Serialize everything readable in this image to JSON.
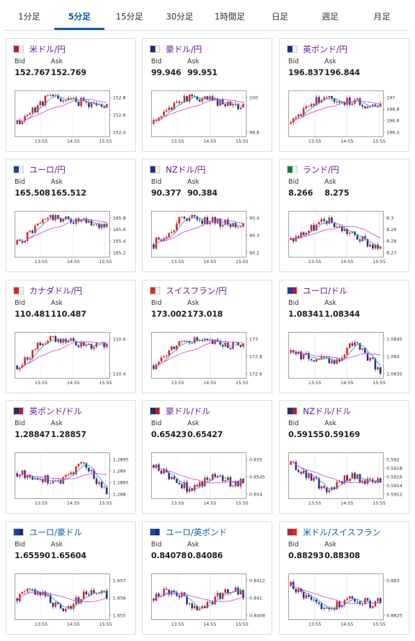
{
  "tabs": [
    {
      "label": "1分足",
      "active": false
    },
    {
      "label": "5分足",
      "active": true
    },
    {
      "label": "15分足",
      "active": false
    },
    {
      "label": "30分足",
      "active": false
    },
    {
      "label": "1時間足",
      "active": false
    },
    {
      "label": "日足",
      "active": false
    },
    {
      "label": "週足",
      "active": false
    },
    {
      "label": "月足",
      "active": false
    }
  ],
  "quote_labels": {
    "bid": "Bid",
    "ask": "Ask"
  },
  "colors": {
    "up": "#e02020",
    "down": "#1f2d8c",
    "ma_short": "#25a3c4",
    "ma_long": "#d64bd6",
    "pair_purple": "#6a1b9a",
    "pair_blue": "#0b5aa5",
    "tab_active": "#0b5aa5"
  },
  "cards": [
    {
      "pair": "米ドル/円",
      "flag": [
        "us",
        "jp"
      ],
      "bid": "152.767",
      "ask": "152.769",
      "seed": 11,
      "shape": "upflat",
      "chart_data": {
        "type": "candlestick",
        "xticks": [
          "13:55",
          "14:55",
          "15:55"
        ],
        "yticks": [
          "152.8",
          "152.6",
          "152.4"
        ]
      }
    },
    {
      "pair": "豪ドル/円",
      "flag": [
        "au",
        "jp"
      ],
      "bid": "99.946",
      "ask": "99.951",
      "seed": 23,
      "shape": "upflat",
      "chart_data": {
        "type": "candlestick",
        "xticks": [
          "13:55",
          "14:55",
          "15:55"
        ],
        "yticks": [
          "100",
          "99.8"
        ]
      }
    },
    {
      "pair": "英ポンド/円",
      "flag": [
        "gb",
        "jp"
      ],
      "bid": "196.837",
      "ask": "196.844",
      "seed": 37,
      "shape": "upflat",
      "chart_data": {
        "type": "candlestick",
        "xticks": [
          "13:55",
          "14:55",
          "15:55"
        ],
        "yticks": [
          "197",
          "196.8",
          "196.6",
          "196.4"
        ]
      }
    },
    {
      "pair": "ユーロ/円",
      "flag": [
        "eu",
        "jp"
      ],
      "bid": "165.508",
      "ask": "165.512",
      "seed": 41,
      "shape": "upflat",
      "chart_data": {
        "type": "candlestick",
        "xticks": [
          "13:55",
          "14:55",
          "15:55"
        ],
        "yticks": [
          "165.8",
          "165.6",
          "165.4",
          "165.2"
        ]
      }
    },
    {
      "pair": "NZドル/円",
      "flag": [
        "nz",
        "jp"
      ],
      "bid": "90.377",
      "ask": "90.384",
      "seed": 53,
      "shape": "upflat",
      "chart_data": {
        "type": "candlestick",
        "xticks": [
          "13:55",
          "14:55",
          "15:55"
        ],
        "yticks": [
          "90.4",
          "90.3",
          "90.2"
        ]
      }
    },
    {
      "pair": "ランド/円",
      "flag": [
        "za",
        "jp"
      ],
      "bid": "8.266",
      "ask": "8.275",
      "seed": 67,
      "shape": "updown",
      "chart_data": {
        "type": "candlestick",
        "xticks": [
          "13:55",
          "14:55",
          "15:55"
        ],
        "yticks": [
          "8.3",
          "8.29",
          "8.28",
          "8.27"
        ]
      }
    },
    {
      "pair": "カナダドル/円",
      "flag": [
        "ca",
        "jp"
      ],
      "bid": "110.481",
      "ask": "110.487",
      "seed": 71,
      "shape": "upflat",
      "chart_data": {
        "type": "candlestick",
        "xticks": [
          "13:55",
          "14:55",
          "15:55"
        ],
        "yticks": [
          "110.6",
          "110.4"
        ]
      }
    },
    {
      "pair": "スイスフラン/円",
      "flag": [
        "ch",
        "jp"
      ],
      "bid": "173.002",
      "ask": "173.018",
      "seed": 83,
      "shape": "upflat",
      "chart_data": {
        "type": "candlestick",
        "xticks": [
          "13:55",
          "14:55",
          "15:55"
        ],
        "yticks": [
          "173",
          "172.8",
          "172.6"
        ]
      }
    },
    {
      "pair": "ユーロ/ドル",
      "flag": [
        "eu",
        "us"
      ],
      "bid": "1.08341",
      "ask": "1.08344",
      "seed": 97,
      "shape": "downup",
      "chart_data": {
        "type": "candlestick",
        "xticks": [
          "13:55",
          "14:55",
          "15:55"
        ],
        "yticks": [
          "1.0845",
          "1.084",
          "1.0835"
        ]
      }
    },
    {
      "pair": "英ポンド/ドル",
      "flag": [
        "gb",
        "us"
      ],
      "bid": "1.28847",
      "ask": "1.28857",
      "seed": 101,
      "shape": "downup",
      "chart_data": {
        "type": "candlestick",
        "xticks": [
          "13:55",
          "14:55",
          "15:55"
        ],
        "yticks": [
          "1.2895",
          "1.289",
          "1.2885",
          "1.288"
        ]
      }
    },
    {
      "pair": "豪ドル/ドル",
      "flag": [
        "au",
        "us"
      ],
      "bid": "0.65423",
      "ask": "0.65427",
      "seed": 113,
      "shape": "downflat",
      "chart_data": {
        "type": "candlestick",
        "xticks": [
          "13:55",
          "14:55",
          "15:55"
        ],
        "yticks": [
          "0.655",
          "0.6545",
          "0.654"
        ]
      }
    },
    {
      "pair": "NZドル/ドル",
      "flag": [
        "nz",
        "us"
      ],
      "bid": "0.59155",
      "ask": "0.59169",
      "seed": 127,
      "shape": "downflat",
      "chart_data": {
        "type": "candlestick",
        "xticks": [
          "13:55",
          "14:55",
          "15:55"
        ],
        "yticks": [
          "0.592",
          "0.5918",
          "0.5916",
          "0.5914",
          "0.5912"
        ]
      }
    },
    {
      "pair": "ユーロ/豪ドル",
      "flag": [
        "eu",
        "au"
      ],
      "bid": "1.65590",
      "ask": "1.65604",
      "seed": 131,
      "shape": "flat",
      "blue": true,
      "chart_data": {
        "type": "candlestick",
        "xticks": [
          "13:55",
          "14:55",
          "15:55"
        ],
        "yticks": [
          "1.657",
          "1.656",
          "1.655"
        ]
      }
    },
    {
      "pair": "ユーロ/英ポンド",
      "flag": [
        "eu",
        "gb"
      ],
      "bid": "0.84078",
      "ask": "0.84086",
      "seed": 149,
      "shape": "flat",
      "blue": true,
      "chart_data": {
        "type": "candlestick",
        "xticks": [
          "13:55",
          "14:55",
          "15:55"
        ],
        "yticks": [
          "0.8412",
          "0.841",
          "0.8408"
        ]
      }
    },
    {
      "pair": "米ドル/スイスフラン",
      "flag": [
        "us",
        "ch"
      ],
      "bid": "0.88293",
      "ask": "0.88308",
      "seed": 157,
      "shape": "downflat",
      "blue": true,
      "chart_data": {
        "type": "candlestick",
        "xticks": [
          "13:55",
          "14:55",
          "15:55"
        ],
        "yticks": [
          "0.883",
          "0.8825"
        ]
      }
    }
  ]
}
